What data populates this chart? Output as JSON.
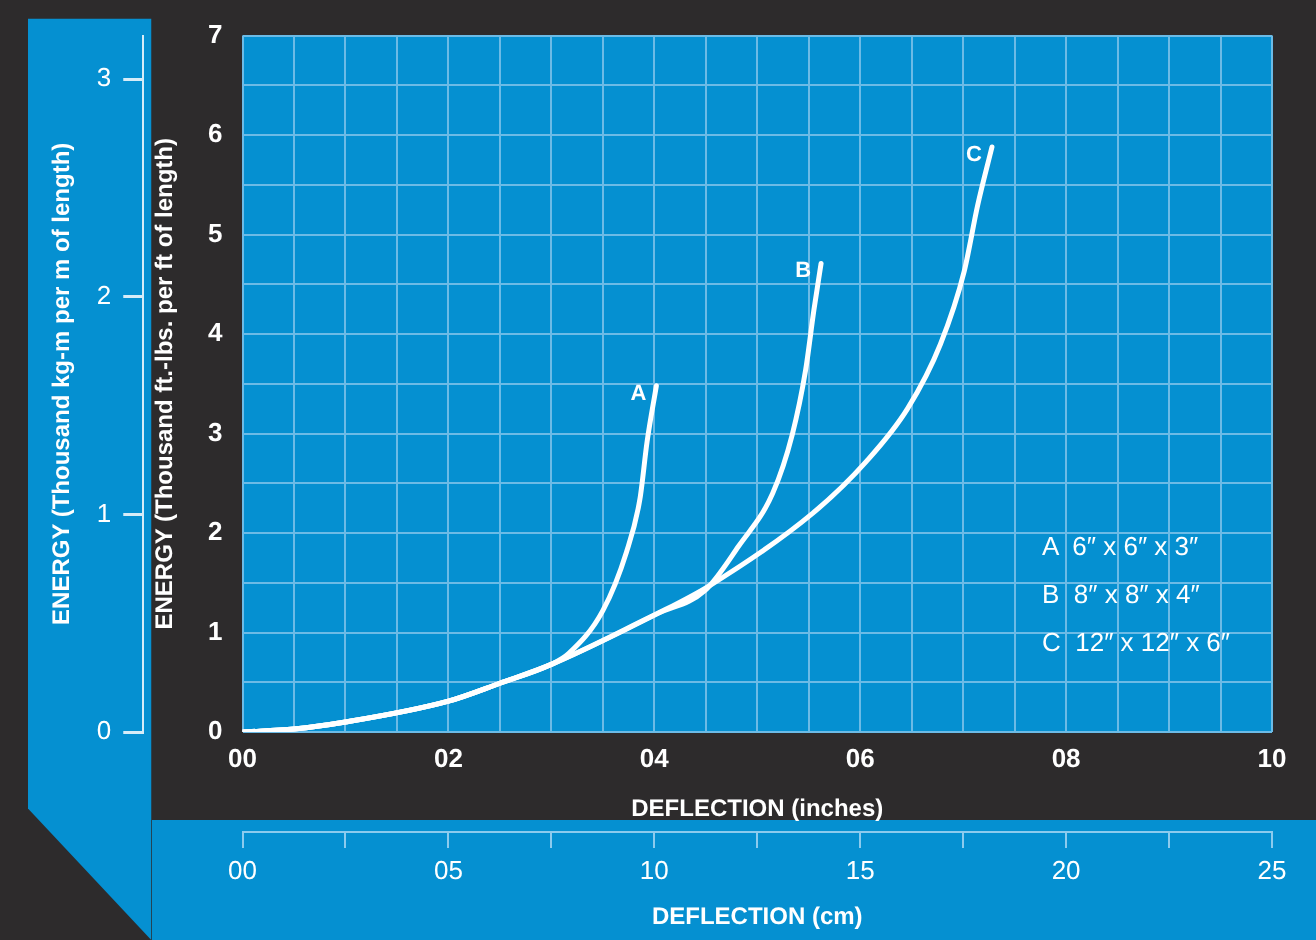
{
  "chart_data": {
    "type": "line",
    "xlabel": "DEFLECTION (inches)",
    "ylabel": "ENERGY (Thousand ft.-lbs. per ft of length)",
    "y2label": "ENERGY (Thousand kg-m per m of length)",
    "x2label": "DEFLECTION (cm)",
    "xlim": [
      0,
      10
    ],
    "xticks": [
      {
        "value": 0,
        "label": "00"
      },
      {
        "value": 0.5,
        "label": null
      },
      {
        "value": 1,
        "label": null
      },
      {
        "value": 1.5,
        "label": null
      },
      {
        "value": 2,
        "label": "02"
      },
      {
        "value": 2.5,
        "label": null
      },
      {
        "value": 3,
        "label": null
      },
      {
        "value": 3.5,
        "label": null
      },
      {
        "value": 4,
        "label": "04"
      },
      {
        "value": 4.5,
        "label": null
      },
      {
        "value": 5,
        "label": null
      },
      {
        "value": 5.5,
        "label": null
      },
      {
        "value": 6,
        "label": "06"
      },
      {
        "value": 6.5,
        "label": null
      },
      {
        "value": 7,
        "label": null
      },
      {
        "value": 7.5,
        "label": null
      },
      {
        "value": 8,
        "label": "08"
      },
      {
        "value": 8.5,
        "label": null
      },
      {
        "value": 9,
        "label": null
      },
      {
        "value": 9.5,
        "label": null
      },
      {
        "value": 10,
        "label": "10"
      }
    ],
    "ylim": [
      0,
      7
    ],
    "yticks": [
      0,
      {
        "value": 0.5,
        "label": null
      },
      1,
      {
        "value": 1.5,
        "label": null
      },
      2,
      {
        "value": 2.5,
        "label": null
      },
      3,
      {
        "value": 3.5,
        "label": null
      },
      4,
      {
        "value": 4.5,
        "label": null
      },
      5,
      {
        "value": 5.5,
        "label": null
      },
      6,
      {
        "value": 6.5,
        "label": null
      },
      7
    ],
    "y2lim": [
      0,
      3.2
    ],
    "y2ticks": [
      0,
      1,
      2,
      3
    ],
    "x2lim": [
      0,
      25
    ],
    "x2ticks": [
      {
        "value": 0,
        "label": "00"
      },
      {
        "value": 2.5,
        "label": null
      },
      {
        "value": 5,
        "label": "05"
      },
      {
        "value": 7.5,
        "label": null
      },
      {
        "value": 10,
        "label": "10"
      },
      {
        "value": 12.5,
        "label": null
      },
      {
        "value": 15,
        "label": "15"
      },
      {
        "value": 17.5,
        "label": null
      },
      {
        "value": 20,
        "label": "20"
      },
      {
        "value": 22.5,
        "label": null
      },
      {
        "value": 25,
        "label": "25"
      }
    ],
    "grid": true,
    "legend": false,
    "marker": "none",
    "line_style": "solid",
    "series": [
      {
        "name": "A",
        "color": "#ffffff",
        "x": [
          0,
          0.5,
          1,
          2,
          2.5,
          3,
          3.17,
          3.5,
          3.73,
          3.86,
          3.93,
          4.02
        ],
        "values": [
          0,
          0.03,
          0.1,
          0.31,
          0.49,
          0.68,
          0.79,
          1.22,
          1.81,
          2.34,
          2.92,
          3.48
        ]
      },
      {
        "name": "B",
        "color": "#ffffff",
        "x": [
          0,
          0.5,
          1,
          2,
          2.5,
          3,
          4.03,
          4.49,
          4.82,
          5.15,
          5.34,
          5.47,
          5.55,
          5.62
        ],
        "values": [
          0,
          0.03,
          0.1,
          0.31,
          0.49,
          0.68,
          1.19,
          1.42,
          1.87,
          2.4,
          2.99,
          3.64,
          4.24,
          4.71
        ]
      },
      {
        "name": "C",
        "color": "#ffffff",
        "x": [
          0,
          0.5,
          1,
          2,
          2.5,
          3,
          4.03,
          4.55,
          5.54,
          6.06,
          6.46,
          6.78,
          7.01,
          7.14,
          7.28
        ],
        "values": [
          0,
          0.03,
          0.1,
          0.31,
          0.49,
          0.68,
          1.19,
          1.48,
          2.2,
          2.72,
          3.25,
          3.9,
          4.63,
          5.29,
          5.88
        ]
      }
    ],
    "annotations": [
      "A  6″ x 6″ x 3″",
      "B  8″ x 8″ x 4″",
      "C  12″ x 12″ x 6″"
    ]
  }
}
